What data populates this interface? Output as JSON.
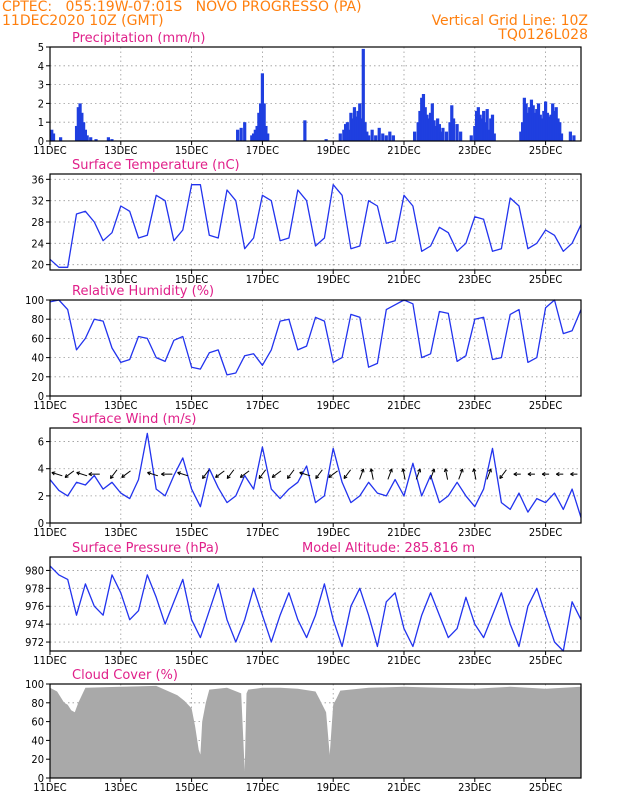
{
  "header": {
    "line1_left": "CPTEC:   055:19W-07:01S   NOVO PROGRESSO (PA)",
    "line2_left": "11DEC2020 10Z (GMT)",
    "line2_right": "Vertical Grid Line: 10Z",
    "line3_right": "TQ0126L028"
  },
  "colors": {
    "header": "#ff7f0e",
    "title": "#e0208a",
    "line": "#2233ee",
    "bar": "#1f3fe0",
    "cloud": "#a9a9a9"
  },
  "chart_data": [
    {
      "type": "bar",
      "title": "Precipitation  (mm/h)",
      "ylim": [
        0,
        5
      ],
      "yticks": [
        0,
        1,
        2,
        3,
        4,
        5
      ],
      "xticks": [
        "11DEC",
        "13DEC",
        "15DEC",
        "17DEC",
        "19DEC",
        "21DEC",
        "23DEC",
        "25DEC"
      ],
      "bars": [
        [
          0.05,
          0.6
        ],
        [
          0.1,
          0.4
        ],
        [
          0.3,
          0.2
        ],
        [
          0.75,
          0.8
        ],
        [
          0.8,
          1.8
        ],
        [
          0.85,
          2.0
        ],
        [
          0.9,
          1.5
        ],
        [
          0.95,
          1.0
        ],
        [
          1.0,
          0.6
        ],
        [
          1.05,
          0.3
        ],
        [
          1.15,
          0.2
        ],
        [
          1.3,
          0.1
        ],
        [
          1.65,
          0.2
        ],
        [
          1.75,
          0.1
        ],
        [
          5.3,
          0.6
        ],
        [
          5.4,
          0.7
        ],
        [
          5.5,
          1.0
        ],
        [
          5.7,
          0.3
        ],
        [
          5.75,
          0.4
        ],
        [
          5.8,
          0.6
        ],
        [
          5.85,
          0.8
        ],
        [
          5.9,
          1.5
        ],
        [
          5.95,
          2.0
        ],
        [
          6.0,
          3.6
        ],
        [
          6.05,
          2.0
        ],
        [
          6.1,
          0.8
        ],
        [
          6.15,
          0.4
        ],
        [
          7.2,
          1.1
        ],
        [
          7.8,
          0.1
        ],
        [
          8.2,
          0.4
        ],
        [
          8.3,
          0.6
        ],
        [
          8.35,
          0.9
        ],
        [
          8.4,
          1.0
        ],
        [
          8.45,
          0.6
        ],
        [
          8.5,
          1.5
        ],
        [
          8.55,
          1.2
        ],
        [
          8.6,
          1.8
        ],
        [
          8.65,
          1.3
        ],
        [
          8.7,
          1.6
        ],
        [
          8.75,
          2.0
        ],
        [
          8.8,
          1.2
        ],
        [
          8.85,
          4.9
        ],
        [
          8.9,
          1.0
        ],
        [
          8.95,
          0.5
        ],
        [
          9.0,
          0.3
        ],
        [
          9.1,
          0.6
        ],
        [
          9.2,
          0.3
        ],
        [
          9.3,
          0.7
        ],
        [
          9.4,
          0.4
        ],
        [
          9.5,
          0.3
        ],
        [
          9.6,
          0.5
        ],
        [
          9.7,
          0.3
        ],
        [
          10.3,
          0.5
        ],
        [
          10.4,
          1.0
        ],
        [
          10.45,
          1.6
        ],
        [
          10.5,
          2.3
        ],
        [
          10.55,
          2.5
        ],
        [
          10.6,
          1.8
        ],
        [
          10.65,
          1.4
        ],
        [
          10.7,
          1.2
        ],
        [
          10.75,
          1.5
        ],
        [
          10.8,
          2.0
        ],
        [
          10.85,
          1.1
        ],
        [
          10.9,
          0.8
        ],
        [
          10.95,
          1.2
        ],
        [
          11.0,
          0.9
        ],
        [
          11.05,
          0.5
        ],
        [
          11.1,
          0.7
        ],
        [
          11.2,
          0.5
        ],
        [
          11.3,
          1.0
        ],
        [
          11.35,
          1.9
        ],
        [
          11.4,
          1.2
        ],
        [
          11.5,
          0.9
        ],
        [
          11.6,
          0.5
        ],
        [
          11.9,
          0.3
        ],
        [
          12.0,
          0.8
        ],
        [
          12.05,
          1.6
        ],
        [
          12.1,
          1.8
        ],
        [
          12.15,
          1.4
        ],
        [
          12.2,
          1.2
        ],
        [
          12.25,
          1.6
        ],
        [
          12.3,
          1.0
        ],
        [
          12.35,
          1.7
        ],
        [
          12.4,
          0.6
        ],
        [
          12.45,
          1.2
        ],
        [
          12.5,
          1.4
        ],
        [
          12.55,
          0.4
        ],
        [
          13.3,
          0.5
        ],
        [
          13.35,
          1.0
        ],
        [
          13.4,
          2.3
        ],
        [
          13.45,
          2.0
        ],
        [
          13.5,
          1.5
        ],
        [
          13.55,
          1.8
        ],
        [
          13.6,
          2.2
        ],
        [
          13.65,
          1.9
        ],
        [
          13.7,
          1.5
        ],
        [
          13.75,
          1.7
        ],
        [
          13.8,
          2.0
        ],
        [
          13.85,
          1.4
        ],
        [
          13.9,
          1.2
        ],
        [
          13.95,
          1.6
        ],
        [
          14.0,
          2.1
        ],
        [
          14.05,
          1.5
        ],
        [
          14.1,
          1.3
        ],
        [
          14.15,
          1.4
        ],
        [
          14.2,
          2.0
        ],
        [
          14.25,
          1.6
        ],
        [
          14.3,
          1.8
        ],
        [
          14.35,
          1.2
        ],
        [
          14.4,
          1.0
        ],
        [
          14.45,
          0.4
        ],
        [
          14.7,
          0.5
        ],
        [
          14.8,
          0.3
        ]
      ]
    },
    {
      "type": "line",
      "title": "Surface Temperature (nC)",
      "ylim": [
        19,
        37
      ],
      "yticks": [
        20,
        24,
        28,
        32,
        36
      ],
      "xticks": [
        "13DEC",
        "15DEC",
        "17DEC",
        "19DEC",
        "21DEC",
        "23DEC",
        "25DEC"
      ],
      "x": [
        0,
        0.25,
        0.5,
        0.75,
        1,
        1.25,
        1.5,
        1.75,
        2,
        2.25,
        2.5,
        2.75,
        3,
        3.25,
        3.5,
        3.75,
        4,
        4.25,
        4.5,
        4.75,
        5,
        5.25,
        5.5,
        5.75,
        6,
        6.25,
        6.5,
        6.75,
        7,
        7.25,
        7.5,
        7.75,
        8,
        8.25,
        8.5,
        8.75,
        9,
        9.25,
        9.5,
        9.75,
        10,
        10.25,
        10.5,
        10.75,
        11,
        11.25,
        11.5,
        11.75,
        12,
        12.25,
        12.5,
        12.75,
        13,
        13.25,
        13.5,
        13.75,
        14,
        14.25,
        14.5,
        14.75,
        15
      ],
      "y": [
        21,
        19.5,
        19.5,
        29.5,
        30,
        28,
        24.5,
        26,
        31,
        30,
        25,
        25.5,
        33,
        32,
        24.5,
        26.5,
        35,
        35,
        25.5,
        25,
        34,
        32,
        23,
        25,
        33,
        32,
        24.5,
        25,
        34,
        32,
        23.5,
        25,
        35,
        33,
        23,
        23.5,
        32,
        31,
        24,
        24.5,
        33,
        31,
        22.5,
        23.5,
        27,
        26,
        22.5,
        24,
        29,
        28.5,
        22.5,
        23,
        32.5,
        31,
        23,
        24,
        26.5,
        25.5,
        22.5,
        24,
        27.5
      ]
    },
    {
      "type": "line",
      "title": "Relative Humidity  (%)",
      "ylim": [
        0,
        100
      ],
      "yticks": [
        0,
        20,
        40,
        60,
        80,
        100
      ],
      "xticks": [
        "11DEC",
        "13DEC",
        "15DEC",
        "17DEC",
        "19DEC",
        "21DEC",
        "23DEC",
        "25DEC"
      ],
      "x": [
        0,
        0.25,
        0.5,
        0.75,
        1,
        1.25,
        1.5,
        1.75,
        2,
        2.25,
        2.5,
        2.75,
        3,
        3.25,
        3.5,
        3.75,
        4,
        4.25,
        4.5,
        4.75,
        5,
        5.25,
        5.5,
        5.75,
        6,
        6.25,
        6.5,
        6.75,
        7,
        7.25,
        7.5,
        7.75,
        8,
        8.25,
        8.5,
        8.75,
        9,
        9.25,
        9.5,
        9.75,
        10,
        10.25,
        10.5,
        10.75,
        11,
        11.25,
        11.5,
        11.75,
        12,
        12.25,
        12.5,
        12.75,
        13,
        13.25,
        13.5,
        13.75,
        14,
        14.25,
        14.5,
        14.75,
        15
      ],
      "y": [
        98,
        100,
        90,
        48,
        60,
        80,
        78,
        50,
        35,
        38,
        62,
        60,
        40,
        36,
        58,
        62,
        30,
        28,
        45,
        48,
        22,
        24,
        42,
        44,
        32,
        48,
        78,
        80,
        48,
        52,
        82,
        78,
        35,
        40,
        85,
        82,
        30,
        34,
        90,
        95,
        100,
        96,
        40,
        44,
        88,
        86,
        36,
        42,
        80,
        82,
        38,
        40,
        85,
        90,
        35,
        40,
        92,
        100,
        65,
        68,
        90
      ]
    },
    {
      "type": "line",
      "title": "Surface Wind  (m/s)",
      "ylim": [
        0,
        7
      ],
      "yticks": [
        0,
        2,
        4,
        6
      ],
      "xticks": [
        "11DEC",
        "13DEC",
        "15DEC",
        "17DEC",
        "19DEC",
        "21DEC",
        "23DEC",
        "25DEC"
      ],
      "x": [
        0,
        0.25,
        0.5,
        0.75,
        1,
        1.25,
        1.5,
        1.75,
        2,
        2.25,
        2.5,
        2.75,
        3,
        3.25,
        3.5,
        3.75,
        4,
        4.25,
        4.5,
        4.75,
        5,
        5.25,
        5.5,
        5.75,
        6,
        6.25,
        6.5,
        6.75,
        7,
        7.25,
        7.5,
        7.75,
        8,
        8.25,
        8.5,
        8.75,
        9,
        9.25,
        9.5,
        9.75,
        10,
        10.25,
        10.5,
        10.75,
        11,
        11.25,
        11.5,
        11.75,
        12,
        12.25,
        12.5,
        12.75,
        13,
        13.25,
        13.5,
        13.75,
        14,
        14.25,
        14.5,
        14.75,
        15
      ],
      "y": [
        3.2,
        2.4,
        2.0,
        3.0,
        2.8,
        3.5,
        2.5,
        3.0,
        2.2,
        1.8,
        3.2,
        6.6,
        2.5,
        2.0,
        3.5,
        4.8,
        2.5,
        1.2,
        4.0,
        2.6,
        1.5,
        2.0,
        3.5,
        2.5,
        5.6,
        2.5,
        1.8,
        2.5,
        3.0,
        4.2,
        1.5,
        2.0,
        5.5,
        3.0,
        1.5,
        2.0,
        3.0,
        2.2,
        2.0,
        3.2,
        2.0,
        4.4,
        2.0,
        3.5,
        1.5,
        2.0,
        3.0,
        2.0,
        1.2,
        2.5,
        5.5,
        1.5,
        1.0,
        2.2,
        0.8,
        1.8,
        1.5,
        2.2,
        1.0,
        2.5,
        0.4
      ]
    },
    {
      "type": "line",
      "title": "Surface Pressure (hPa)",
      "annotation": "Model Altitude: 285.816  m",
      "ylim": [
        971,
        981.5
      ],
      "yticks": [
        972,
        974,
        976,
        978,
        980
      ],
      "xticks": [
        "11DEC",
        "13DEC",
        "15DEC",
        "17DEC",
        "19DEC",
        "21DEC",
        "23DEC",
        "25DEC"
      ],
      "x": [
        0,
        0.25,
        0.5,
        0.75,
        1,
        1.25,
        1.5,
        1.75,
        2,
        2.25,
        2.5,
        2.75,
        3,
        3.25,
        3.5,
        3.75,
        4,
        4.25,
        4.5,
        4.75,
        5,
        5.25,
        5.5,
        5.75,
        6,
        6.25,
        6.5,
        6.75,
        7,
        7.25,
        7.5,
        7.75,
        8,
        8.25,
        8.5,
        8.75,
        9,
        9.25,
        9.5,
        9.75,
        10,
        10.25,
        10.5,
        10.75,
        11,
        11.25,
        11.5,
        11.75,
        12,
        12.25,
        12.5,
        12.75,
        13,
        13.25,
        13.5,
        13.75,
        14,
        14.25,
        14.5,
        14.75,
        15
      ],
      "y": [
        980.5,
        979.5,
        979,
        975,
        978.5,
        976,
        975,
        979.5,
        977.5,
        974.5,
        975.5,
        979.5,
        977,
        974,
        976.5,
        979,
        974.5,
        972.5,
        975.5,
        978.5,
        974.5,
        972,
        974.5,
        978,
        975,
        972,
        975,
        977.5,
        974.5,
        972.5,
        975,
        978.5,
        974.5,
        971.5,
        976,
        978,
        975,
        971.5,
        976.5,
        977.5,
        973.5,
        971.5,
        975,
        977.5,
        975,
        972.5,
        973.5,
        977,
        974,
        972.5,
        975,
        977.5,
        974,
        971.5,
        976,
        978,
        975,
        972,
        971,
        976.5,
        974.5
      ]
    },
    {
      "type": "area",
      "title": "Cloud Cover  (%)",
      "ylim": [
        0,
        100
      ],
      "yticks": [
        0,
        20,
        40,
        60,
        80,
        100
      ],
      "xticks": [
        "11DEC",
        "13DEC",
        "15DEC",
        "17DEC",
        "19DEC",
        "21DEC",
        "23DEC",
        "25DEC"
      ],
      "x": [
        0,
        0.2,
        0.4,
        0.5,
        0.6,
        0.7,
        0.8,
        1.0,
        2.0,
        3.0,
        3.6,
        3.8,
        4.0,
        4.1,
        4.2,
        4.25,
        4.3,
        4.4,
        4.5,
        5.0,
        5.4,
        5.5,
        5.55,
        5.6,
        5.8,
        6.0,
        6.5,
        7.0,
        7.5,
        7.6,
        7.8,
        7.9,
        8.0,
        8.1,
        8.2,
        9.0,
        10.0,
        11.0,
        12.0,
        12.5,
        13.0,
        13.5,
        14.0,
        14.5,
        15.0
      ],
      "y": [
        96,
        92,
        80,
        78,
        72,
        70,
        80,
        96,
        97,
        98,
        88,
        82,
        74,
        55,
        30,
        25,
        60,
        80,
        94,
        96,
        90,
        8,
        90,
        94,
        95,
        96,
        96,
        95,
        92,
        85,
        70,
        25,
        78,
        85,
        93,
        96,
        97,
        96,
        95,
        96,
        97,
        96,
        95,
        96,
        97
      ]
    }
  ],
  "wind_vectors": [
    {
      "x": 0.2,
      "dir": 1
    },
    {
      "x": 0.55,
      "dir": 2
    },
    {
      "x": 0.9,
      "dir": 1
    },
    {
      "x": 1.25,
      "dir": 0
    },
    {
      "x": 1.8,
      "dir": 3
    },
    {
      "x": 2.15,
      "dir": 2
    },
    {
      "x": 2.9,
      "dir": 1
    },
    {
      "x": 3.3,
      "dir": 0
    },
    {
      "x": 3.75,
      "dir": 1
    },
    {
      "x": 4.4,
      "dir": 3
    },
    {
      "x": 4.8,
      "dir": 2
    },
    {
      "x": 5.1,
      "dir": 3
    },
    {
      "x": 5.5,
      "dir": 2
    },
    {
      "x": 6.0,
      "dir": 3
    },
    {
      "x": 6.4,
      "dir": 2
    },
    {
      "x": 6.8,
      "dir": 3
    },
    {
      "x": 7.2,
      "dir": 1
    },
    {
      "x": 7.6,
      "dir": 3
    },
    {
      "x": 8.0,
      "dir": 2
    },
    {
      "x": 8.4,
      "dir": 3
    },
    {
      "x": 8.8,
      "dir": 4
    },
    {
      "x": 9.1,
      "dir": 5
    },
    {
      "x": 9.6,
      "dir": 4
    },
    {
      "x": 10.0,
      "dir": 5
    },
    {
      "x": 10.4,
      "dir": 4
    },
    {
      "x": 10.8,
      "dir": 4
    },
    {
      "x": 11.2,
      "dir": 5
    },
    {
      "x": 11.6,
      "dir": 4
    },
    {
      "x": 12.0,
      "dir": 5
    },
    {
      "x": 12.4,
      "dir": 4
    },
    {
      "x": 12.8,
      "dir": 3
    },
    {
      "x": 13.2,
      "dir": 6
    },
    {
      "x": 13.6,
      "dir": 6
    },
    {
      "x": 14.0,
      "dir": 6
    },
    {
      "x": 14.4,
      "dir": 6
    },
    {
      "x": 14.8,
      "dir": 6
    }
  ]
}
